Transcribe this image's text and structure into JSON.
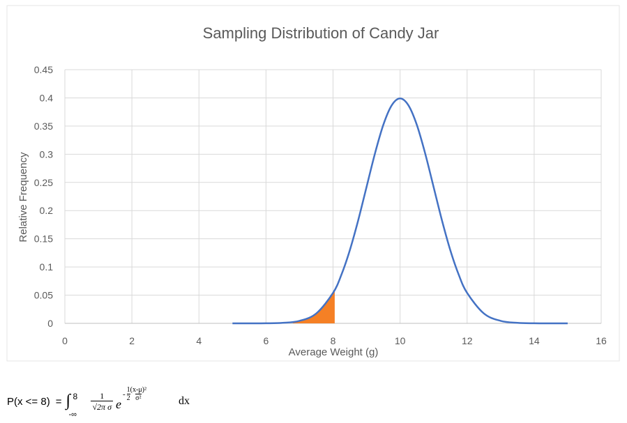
{
  "colors": {
    "curve": "#4472C4",
    "shade": "#F58025",
    "grid": "#D9D9D9",
    "text": "#595959",
    "background": "#FFFFFF"
  },
  "chart_data": {
    "type": "line",
    "title": "Sampling Distribution of Candy Jar",
    "xlabel": "Average Weight (g)",
    "ylabel": "Relative Frequency",
    "xlim": [
      0,
      16
    ],
    "ylim": [
      0,
      0.45
    ],
    "x_ticks": [
      "0",
      "2",
      "4",
      "6",
      "8",
      "10",
      "12",
      "14",
      "16"
    ],
    "y_ticks": [
      "0",
      "0.05",
      "0.1",
      "0.15",
      "0.2",
      "0.25",
      "0.3",
      "0.35",
      "0.4",
      "0.45"
    ],
    "grid": true,
    "series": [
      {
        "type": "line",
        "x": [
          5,
          5.5,
          6,
          6.5,
          7,
          7.5,
          8,
          8.25,
          8.5,
          8.75,
          9,
          9.25,
          9.5,
          9.75,
          10,
          10.25,
          10.5,
          10.75,
          11,
          11.25,
          11.5,
          11.75,
          12,
          12.5,
          13,
          13.5,
          14,
          14.5,
          15
        ],
        "y": [
          1.5e-06,
          1.6e-05,
          0.0001338,
          0.0008727,
          0.0044318,
          0.0175283,
          0.053991,
          0.0862773,
          0.1295176,
          0.1826491,
          0.2419707,
          0.3011374,
          0.3520653,
          0.3866681,
          0.3989423,
          0.3866681,
          0.3520653,
          0.3011374,
          0.2419707,
          0.1826491,
          0.1295176,
          0.0862773,
          0.053991,
          0.0175283,
          0.0044318,
          0.0008727,
          0.0001338,
          1.6e-05,
          1.5e-06
        ]
      },
      {
        "type": "area",
        "x": [
          6.8,
          7,
          7.25,
          7.5,
          7.75,
          8,
          8.05
        ],
        "y": [
          0.0023841,
          0.0044318,
          0.0090874,
          0.0175283,
          0.0317397,
          0.053991,
          0.0590854
        ]
      }
    ]
  },
  "formula": {
    "lhs": "P(x <= 8)",
    "equals": "=",
    "integral_sign": "∫",
    "upper_limit": "8",
    "lower_limit": "-∞",
    "coef_numerator": "1",
    "coef_denominator": "√2π  σ",
    "exp_base": "e",
    "exp_minus": "-",
    "exp_frac_numerator": "1",
    "exp_frac_denominator": "2",
    "exp_ratio_numerator": "(x-μ)²",
    "exp_ratio_denominator": "σ²",
    "differential": "dx"
  }
}
